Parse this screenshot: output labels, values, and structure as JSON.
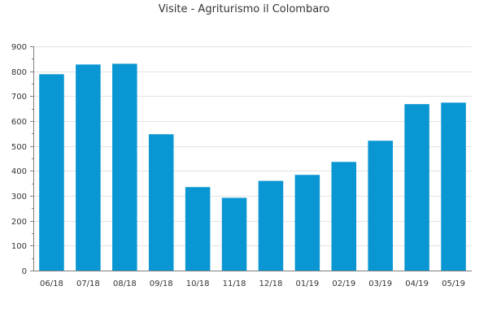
{
  "chart_data": {
    "type": "bar",
    "title": "Visite - Agriturismo il Colombaro",
    "categories": [
      "06/18",
      "07/18",
      "08/18",
      "09/18",
      "10/18",
      "11/18",
      "12/18",
      "01/19",
      "02/19",
      "03/19",
      "04/19",
      "05/19"
    ],
    "values": [
      788,
      827,
      830,
      547,
      335,
      292,
      360,
      384,
      436,
      521,
      668,
      674
    ],
    "ylim": [
      0,
      900
    ],
    "yticks": [
      0,
      100,
      200,
      300,
      400,
      500,
      600,
      700,
      800,
      900
    ],
    "xlabel": "",
    "ylabel": "",
    "grid": true,
    "colors": {
      "bar": "#0a96d2",
      "grid": "#e3e3e3",
      "axis": "#7f7f7f"
    }
  }
}
